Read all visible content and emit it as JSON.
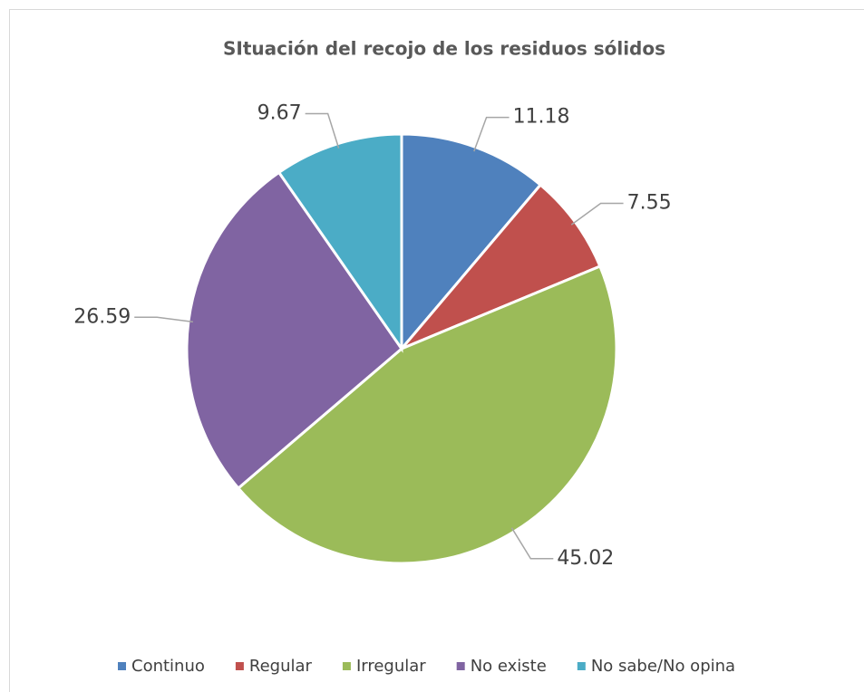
{
  "chart_data": {
    "type": "pie",
    "title": "SItuación del recojo de los residuos sólidos",
    "categories": [
      "Continuo",
      "Regular",
      "Irregular",
      "No existe",
      "No sabe/No opina"
    ],
    "values": [
      11.18,
      7.55,
      45.02,
      26.59,
      9.67
    ],
    "colors": [
      "#4f81bd",
      "#c0504d",
      "#9bbb59",
      "#8064a2",
      "#4bacc6"
    ],
    "legend": "bottom"
  }
}
